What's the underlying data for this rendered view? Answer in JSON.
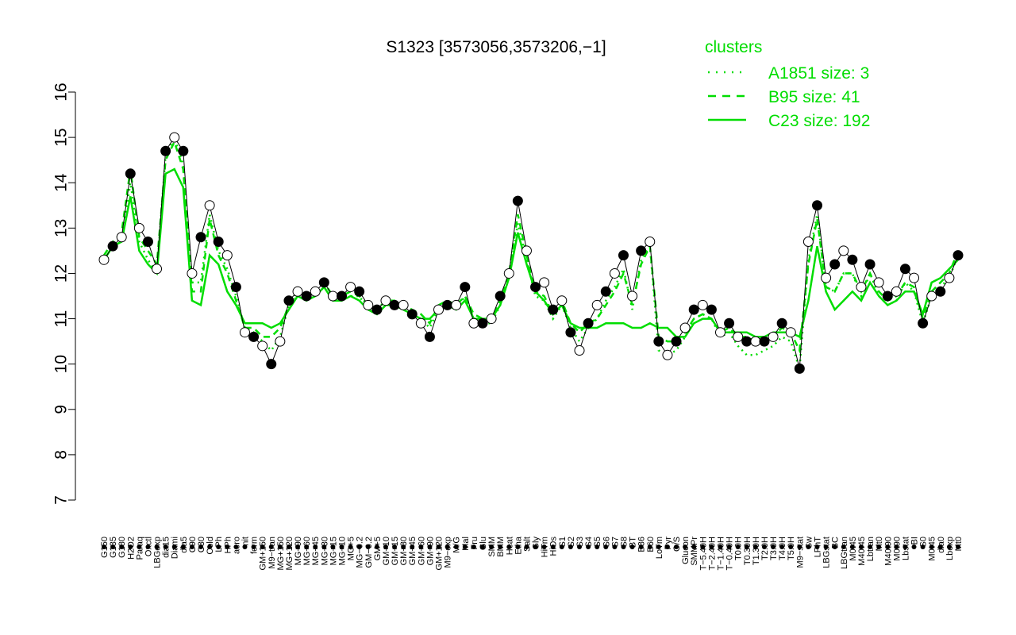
{
  "chart_data": {
    "type": "line",
    "title": "S1323 [3573056,3573206,−1]",
    "ylim": [
      7,
      16
    ],
    "yticks": [
      7,
      8,
      9,
      10,
      11,
      12,
      13,
      14,
      15,
      16
    ],
    "xlabels": [
      "G150",
      "G135",
      "G180",
      "H2O2",
      "Paraq",
      "Oxctl",
      "LBGexp",
      "dia15",
      "Diami",
      "dia5",
      "C90",
      "C30",
      "Cold",
      "LPh",
      "HPh",
      "aero",
      "nit",
      "ferm",
      "GM+150",
      "M9−tran",
      "MG+150",
      "MG+120",
      "MG+90",
      "MG+60",
      "MG+45",
      "MG+30",
      "MG+15",
      "MG+10",
      "MG+5",
      "MG−0.2",
      "GM−0.2",
      "GM+5",
      "GM+10",
      "GM+15",
      "GM+30",
      "GM+45",
      "GM+60",
      "GM+90",
      "GM+120",
      "M9−exp",
      "M/G",
      "Mal",
      "Fru",
      "Glu",
      "SMM",
      "BMM",
      "Heat",
      "Etha",
      "Salt",
      "Gly",
      "HiTm",
      "HiOs",
      "S1",
      "S2",
      "S3",
      "S4",
      "S5",
      "S6",
      "S7",
      "S8",
      "BT",
      "B36",
      "B60",
      "LoTm",
      "Pyr",
      "G/S",
      "Glucon",
      "SMMPr",
      "T−5.40H",
      "T−2.40H",
      "T−1.40H",
      "T−0.40H",
      "T0.0H",
      "T0.30H",
      "T1.30H",
      "T2.0H",
      "T3.0H",
      "T4.0H",
      "T5.0H",
      "M9−stat",
      "Sw",
      "LPhT",
      "LBGstat",
      "BC",
      "LBGtran",
      "M0t45",
      "M40t45",
      "Lbtran",
      "Mt0",
      "M40t90",
      "M0t90",
      "Lbstat",
      "BI",
      "S0",
      "M0t45",
      "dia0",
      "Lbexp",
      "Mt0"
    ],
    "legend": {
      "title": "clusters",
      "position": "top-right",
      "entries": [
        {
          "label": "A1851 size: 3",
          "style": "dotted"
        },
        {
          "label": "B95 size: 41",
          "style": "dashed"
        },
        {
          "label": "C23 size: 192",
          "style": "solid"
        }
      ]
    },
    "series": [
      {
        "name": "S1323",
        "values": [
          12.3,
          12.6,
          12.8,
          14.2,
          13.0,
          12.7,
          12.1,
          14.7,
          15.0,
          14.7,
          12.0,
          12.8,
          13.5,
          12.7,
          12.4,
          11.7,
          10.7,
          10.6,
          10.4,
          10.0,
          10.5,
          11.4,
          11.6,
          11.5,
          11.6,
          11.8,
          11.5,
          11.5,
          11.7,
          11.6,
          11.3,
          11.2,
          11.4,
          11.3,
          11.3,
          11.1,
          10.9,
          10.6,
          11.2,
          11.3,
          11.3,
          11.7,
          10.9,
          10.9,
          11.0,
          11.5,
          12.0,
          13.6,
          12.5,
          11.7,
          11.8,
          11.2,
          11.4,
          10.7,
          10.3,
          10.9,
          11.3,
          11.6,
          12.0,
          12.4,
          11.5,
          12.5,
          12.7,
          10.5,
          10.2,
          10.5,
          10.8,
          11.2,
          11.3,
          11.2,
          10.7,
          10.9,
          10.6,
          10.5,
          10.5,
          10.5,
          10.6,
          10.9,
          10.7,
          9.9,
          12.7,
          13.5,
          11.9,
          12.2,
          12.5,
          12.3,
          11.7,
          12.2,
          11.8,
          11.5,
          11.6,
          12.1,
          11.9,
          10.9,
          11.5,
          11.6,
          11.9,
          12.4
        ],
        "color": "#000000"
      },
      {
        "name": "C23 size: 192",
        "values": [
          12.3,
          12.6,
          12.7,
          13.7,
          12.5,
          12.2,
          12.0,
          14.2,
          14.3,
          13.9,
          11.4,
          11.3,
          12.4,
          12.2,
          11.6,
          11.3,
          10.9,
          10.9,
          10.9,
          10.8,
          10.9,
          11.2,
          11.5,
          11.4,
          11.5,
          11.7,
          11.4,
          11.4,
          11.5,
          11.4,
          11.2,
          11.1,
          11.3,
          11.3,
          11.2,
          11.1,
          11.0,
          11.0,
          11.2,
          11.3,
          11.2,
          11.4,
          11.0,
          11.0,
          11.0,
          11.3,
          11.9,
          12.9,
          12.2,
          11.6,
          11.4,
          11.1,
          11.3,
          10.9,
          10.8,
          10.8,
          10.8,
          10.9,
          10.9,
          10.9,
          10.8,
          10.8,
          10.9,
          10.8,
          10.8,
          10.6,
          10.6,
          10.9,
          11.0,
          11.0,
          10.7,
          10.7,
          10.7,
          10.7,
          10.6,
          10.6,
          10.7,
          10.7,
          10.7,
          10.6,
          11.4,
          12.6,
          11.6,
          11.2,
          11.4,
          11.6,
          11.4,
          11.8,
          11.5,
          11.3,
          11.4,
          11.6,
          11.6,
          11.1,
          11.8,
          11.9,
          12.1,
          12.3
        ],
        "color": "#00dd00"
      },
      {
        "name": "B95 size: 41",
        "values": [
          12.4,
          12.7,
          12.9,
          14.3,
          12.8,
          12.5,
          12.2,
          14.5,
          14.9,
          14.3,
          11.6,
          11.6,
          13.2,
          12.4,
          12.0,
          11.4,
          10.8,
          10.8,
          10.6,
          10.6,
          10.8,
          11.3,
          11.6,
          11.5,
          11.6,
          11.8,
          11.5,
          11.5,
          11.6,
          11.5,
          11.3,
          11.2,
          11.4,
          11.4,
          11.3,
          11.2,
          11.1,
          10.9,
          11.3,
          11.4,
          11.3,
          11.5,
          11.1,
          11.0,
          11.0,
          11.4,
          12.0,
          13.3,
          12.4,
          11.6,
          11.5,
          11.1,
          11.4,
          10.9,
          10.7,
          10.9,
          11.0,
          11.3,
          11.6,
          12.0,
          11.3,
          12.2,
          12.6,
          10.6,
          10.5,
          10.5,
          10.7,
          11.0,
          11.1,
          11.0,
          10.7,
          10.8,
          10.6,
          10.6,
          10.5,
          10.5,
          10.6,
          10.8,
          10.7,
          10.3,
          12.2,
          13.2,
          11.7,
          11.6,
          12.0,
          12.0,
          11.6,
          12.0,
          11.6,
          11.4,
          11.5,
          11.8,
          11.7,
          11.0,
          11.6,
          11.8,
          12.0,
          12.5
        ],
        "color": "#00dd00"
      },
      {
        "name": "A1851 size: 3",
        "values": [
          12.3,
          12.6,
          12.7,
          14.0,
          12.7,
          12.3,
          12.0,
          14.6,
          15.0,
          14.4,
          11.8,
          11.8,
          13.3,
          12.5,
          12.1,
          11.5,
          10.8,
          10.7,
          10.5,
          10.3,
          10.6,
          11.3,
          11.5,
          11.4,
          11.5,
          11.7,
          11.4,
          11.4,
          11.5,
          11.5,
          11.2,
          11.1,
          11.3,
          11.3,
          11.2,
          11.1,
          11.0,
          10.8,
          11.2,
          11.3,
          11.2,
          11.5,
          11.0,
          10.9,
          10.9,
          11.3,
          11.9,
          13.1,
          12.3,
          11.5,
          11.4,
          11.0,
          11.3,
          10.8,
          10.5,
          10.8,
          11.0,
          11.4,
          11.7,
          12.1,
          11.2,
          12.3,
          12.6,
          10.3,
          10.2,
          10.3,
          10.6,
          11.0,
          11.1,
          11.0,
          10.6,
          10.7,
          10.4,
          10.2,
          10.2,
          10.3,
          10.4,
          10.6,
          10.5,
          9.9,
          12.3,
          13.3,
          11.7,
          11.6,
          12.0,
          12.0,
          11.5,
          12.0,
          11.5,
          11.3,
          11.4,
          11.8,
          11.6,
          10.9,
          11.5,
          11.7,
          11.9,
          12.4
        ],
        "color": "#00dd00"
      }
    ]
  }
}
